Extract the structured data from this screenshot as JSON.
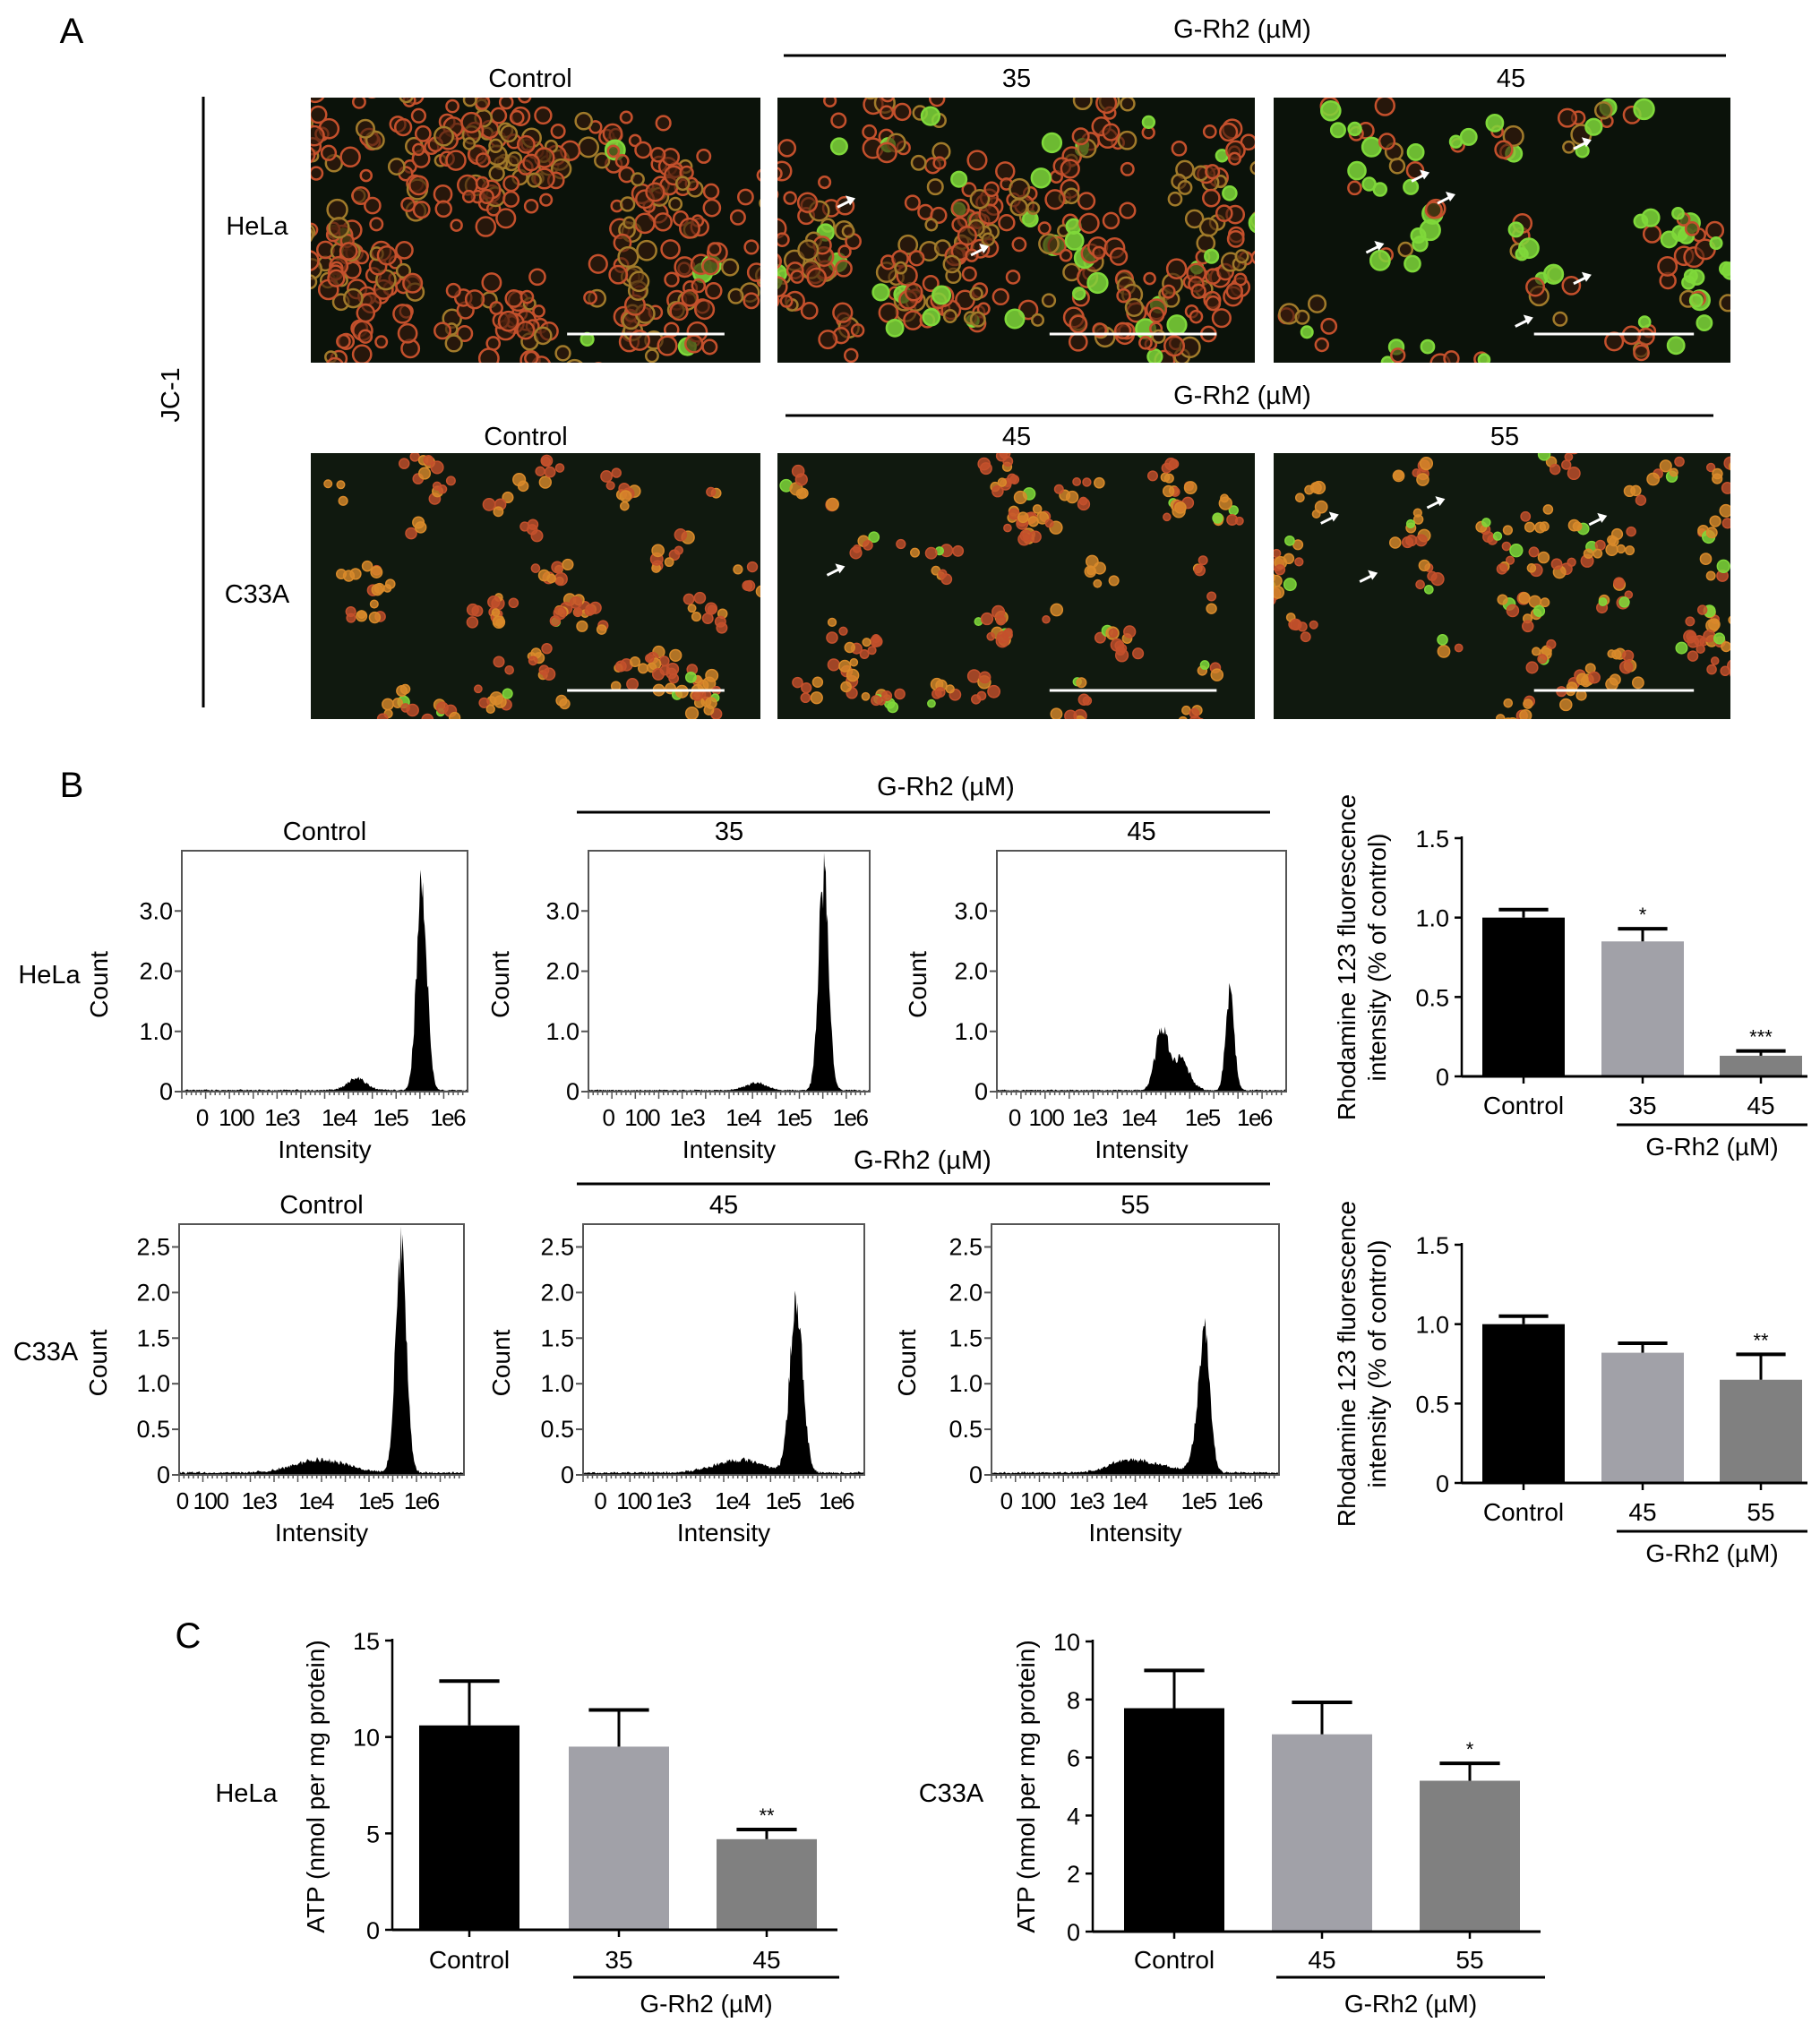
{
  "panel_labels": {
    "a": "A",
    "b": "B",
    "c": "C"
  },
  "panel_a": {
    "stain_label": "JC-1",
    "treatment_label": "G-Rh2 (µM)",
    "rows": [
      {
        "cell_line": "HeLa",
        "columns": [
          "Control",
          "35",
          "45"
        ],
        "arrow_counts": [
          0,
          2,
          6
        ]
      },
      {
        "cell_line": "C33A",
        "columns": [
          "Control",
          "45",
          "55"
        ],
        "arrow_counts": [
          0,
          1,
          4
        ]
      }
    ],
    "colors": {
      "background": "#0b120a",
      "red_aggregate": "#c4502c",
      "orange_cell": "#d98a2a",
      "green_monomer": "#7fd83a",
      "scale_bar": "#ffffff"
    }
  },
  "panel_b": {
    "treatment_label": "G-Rh2 (µM)",
    "row_labels": [
      "HeLa",
      "C33A"
    ]
  },
  "panel_c": {
    "row_labels": [
      "HeLa",
      "C33A"
    ]
  },
  "chart_data": [
    {
      "type": "area",
      "panel": "B",
      "cell_line": "HeLa",
      "title": "Control",
      "xlabel": "Intensity",
      "ylabel": "Count",
      "x_scale": "log",
      "x_tick_labels": [
        "0",
        "100",
        "1e3",
        "1e4",
        "1e5",
        "1e6"
      ],
      "y_ticks": [
        0,
        1,
        2,
        3
      ],
      "y_tick_labels": [
        "0",
        "1.0",
        "2.0",
        "3.0"
      ],
      "ylim": [
        0,
        4
      ],
      "peaks": [
        {
          "intensity": 355000,
          "count": 3.5,
          "width_decades": 0.09
        },
        {
          "intensity": 22000,
          "count": 0.2,
          "width_decades": 0.18
        }
      ]
    },
    {
      "type": "area",
      "panel": "B",
      "cell_line": "HeLa",
      "title": "35",
      "xlabel": "Intensity",
      "ylabel": "Count",
      "x_scale": "log",
      "x_tick_labels": [
        "0",
        "100",
        "1e3",
        "1e4",
        "1e5",
        "1e6"
      ],
      "y_ticks": [
        0,
        1,
        2,
        3
      ],
      "y_tick_labels": [
        "0",
        "1.0",
        "2.0",
        "3.0"
      ],
      "ylim": [
        0,
        4
      ],
      "peaks": [
        {
          "intensity": 340000,
          "count": 3.55,
          "width_decades": 0.09
        },
        {
          "intensity": 18000,
          "count": 0.12,
          "width_decades": 0.2
        }
      ]
    },
    {
      "type": "area",
      "panel": "B",
      "cell_line": "HeLa",
      "title": "45",
      "xlabel": "Intensity",
      "ylabel": "Count",
      "x_scale": "log",
      "x_tick_labels": [
        "0",
        "100",
        "1e3",
        "1e4",
        "1e5",
        "1e6"
      ],
      "y_ticks": [
        0,
        1,
        2,
        3
      ],
      "y_tick_labels": [
        "0",
        "1.0",
        "2.0",
        "3.0"
      ],
      "ylim": [
        0,
        4
      ],
      "peaks": [
        {
          "intensity": 23000,
          "count": 0.95,
          "width_decades": 0.1
        },
        {
          "intensity": 45000,
          "count": 0.5,
          "width_decades": 0.14
        },
        {
          "intensity": 340000,
          "count": 1.65,
          "width_decades": 0.08
        }
      ]
    },
    {
      "type": "area",
      "panel": "B",
      "cell_line": "C33A",
      "title": "Control",
      "xlabel": "Intensity",
      "ylabel": "Count",
      "x_scale": "log",
      "x_tick_labels": [
        "0",
        "100",
        "1e3",
        "1e4",
        "1e5",
        "1e6"
      ],
      "y_ticks": [
        0,
        0.5,
        1,
        1.5,
        2,
        2.5
      ],
      "y_tick_labels": [
        "0",
        "0.5",
        "1.0",
        "1.5",
        "2.0",
        "2.5"
      ],
      "ylim": [
        0,
        2.75
      ],
      "peaks": [
        {
          "intensity": 360000,
          "count": 2.4,
          "width_decades": 0.12
        },
        {
          "intensity": 12000,
          "count": 0.14,
          "width_decades": 0.45
        }
      ]
    },
    {
      "type": "area",
      "panel": "B",
      "cell_line": "C33A",
      "title": "45",
      "xlabel": "Intensity",
      "ylabel": "Count",
      "x_scale": "log",
      "x_tick_labels": [
        "0",
        "100",
        "1e3",
        "1e4",
        "1e5",
        "1e6"
      ],
      "y_ticks": [
        0,
        0.5,
        1,
        1.5,
        2,
        2.5
      ],
      "y_tick_labels": [
        "0",
        "0.5",
        "1.0",
        "1.5",
        "2.0",
        "2.5"
      ],
      "ylim": [
        0,
        2.75
      ],
      "peaks": [
        {
          "intensity": 180000,
          "count": 1.85,
          "width_decades": 0.12
        },
        {
          "intensity": 15000,
          "count": 0.14,
          "width_decades": 0.45
        }
      ]
    },
    {
      "type": "area",
      "panel": "B",
      "cell_line": "C33A",
      "title": "55",
      "xlabel": "Intensity",
      "ylabel": "Count",
      "x_scale": "log",
      "x_tick_labels": [
        "0",
        "100",
        "1e3",
        "1e4",
        "1e5",
        "1e6"
      ],
      "y_ticks": [
        0,
        0.5,
        1,
        1.5,
        2,
        2.5
      ],
      "y_tick_labels": [
        "0",
        "0.5",
        "1.0",
        "1.5",
        "2.0",
        "2.5"
      ],
      "ylim": [
        0,
        2.75
      ],
      "peaks": [
        {
          "intensity": 135000,
          "count": 1.6,
          "width_decades": 0.12
        },
        {
          "intensity": 10000,
          "count": 0.14,
          "width_decades": 0.45
        }
      ]
    },
    {
      "type": "bar",
      "panel": "B",
      "cell_line": "HeLa",
      "categories": [
        "Control",
        "35",
        "45"
      ],
      "values": [
        1.0,
        0.85,
        0.13
      ],
      "errors": [
        0.05,
        0.08,
        0.03
      ],
      "significance": [
        "",
        "*",
        "***"
      ],
      "ylabel_lines": [
        "Rhodamine 123 fluorescence",
        "intensity (% of control)"
      ],
      "ylim": [
        0,
        1.5
      ],
      "y_ticks": [
        0,
        0.5,
        1,
        1.5
      ],
      "y_tick_labels": [
        "0",
        "0.5",
        "1.0",
        "1.5"
      ],
      "group_label": "G-Rh2 (µM)",
      "colors": [
        "#000000",
        "#a1a1a8",
        "#808080"
      ]
    },
    {
      "type": "bar",
      "panel": "B",
      "cell_line": "C33A",
      "categories": [
        "Control",
        "45",
        "55"
      ],
      "values": [
        1.0,
        0.82,
        0.65
      ],
      "errors": [
        0.05,
        0.06,
        0.16
      ],
      "significance": [
        "",
        "",
        "**"
      ],
      "ylabel_lines": [
        "Rhodamine 123 fluorescence",
        "intensity (% of control)"
      ],
      "ylim": [
        0,
        1.5
      ],
      "y_ticks": [
        0,
        0.5,
        1,
        1.5
      ],
      "y_tick_labels": [
        "0",
        "0.5",
        "1.0",
        "1.5"
      ],
      "group_label": "G-Rh2 (µM)",
      "colors": [
        "#000000",
        "#a1a1a8",
        "#808080"
      ]
    },
    {
      "type": "bar",
      "panel": "C",
      "cell_line": "HeLa",
      "categories": [
        "Control",
        "35",
        "45"
      ],
      "values": [
        10.6,
        9.5,
        4.7
      ],
      "errors": [
        2.3,
        1.9,
        0.5
      ],
      "significance": [
        "",
        "",
        "**"
      ],
      "ylabel_lines": [
        "ATP (nmol per mg protein)"
      ],
      "ylim": [
        0,
        15
      ],
      "y_ticks": [
        0,
        5,
        10,
        15
      ],
      "y_tick_labels": [
        "0",
        "5",
        "10",
        "15"
      ],
      "group_label": "G-Rh2 (µM)",
      "colors": [
        "#000000",
        "#a1a1a8",
        "#808080"
      ]
    },
    {
      "type": "bar",
      "panel": "C",
      "cell_line": "C33A",
      "categories": [
        "Control",
        "45",
        "55"
      ],
      "values": [
        7.7,
        6.8,
        5.2
      ],
      "errors": [
        1.3,
        1.1,
        0.6
      ],
      "significance": [
        "",
        "",
        "*"
      ],
      "ylabel_lines": [
        "ATP (nmol per mg protein)"
      ],
      "ylim": [
        0,
        10
      ],
      "y_ticks": [
        0,
        2,
        4,
        6,
        8,
        10
      ],
      "y_tick_labels": [
        "0",
        "2",
        "4",
        "6",
        "8",
        "10"
      ],
      "group_label": "G-Rh2 (µM)",
      "colors": [
        "#000000",
        "#a1a1a8",
        "#808080"
      ]
    }
  ]
}
